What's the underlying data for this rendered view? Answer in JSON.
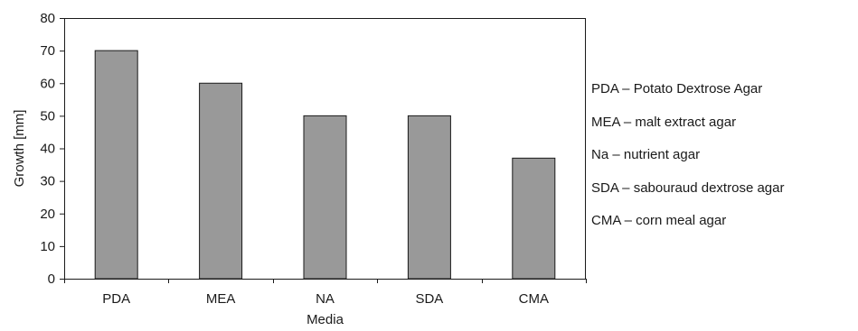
{
  "chart_data": {
    "type": "bar",
    "categories": [
      "PDA",
      "MEA",
      "NA",
      "SDA",
      "CMA"
    ],
    "values": [
      70,
      60,
      50,
      50,
      37
    ],
    "xlabel": "Media",
    "ylabel": "Growth [mm]",
    "ylim": [
      0,
      80
    ],
    "yticks": [
      0,
      10,
      20,
      30,
      40,
      50,
      60,
      70,
      80
    ],
    "grid": false,
    "legend_position": "right",
    "bar_color": "#999999",
    "bar_edge_color": "#1a1a1a"
  },
  "legend": {
    "items": [
      "PDA – Potato Dextrose Agar",
      "MEA – malt extract agar",
      "Na – nutrient agar",
      "SDA – sabouraud dextrose agar",
      "CMA – corn meal agar"
    ]
  }
}
